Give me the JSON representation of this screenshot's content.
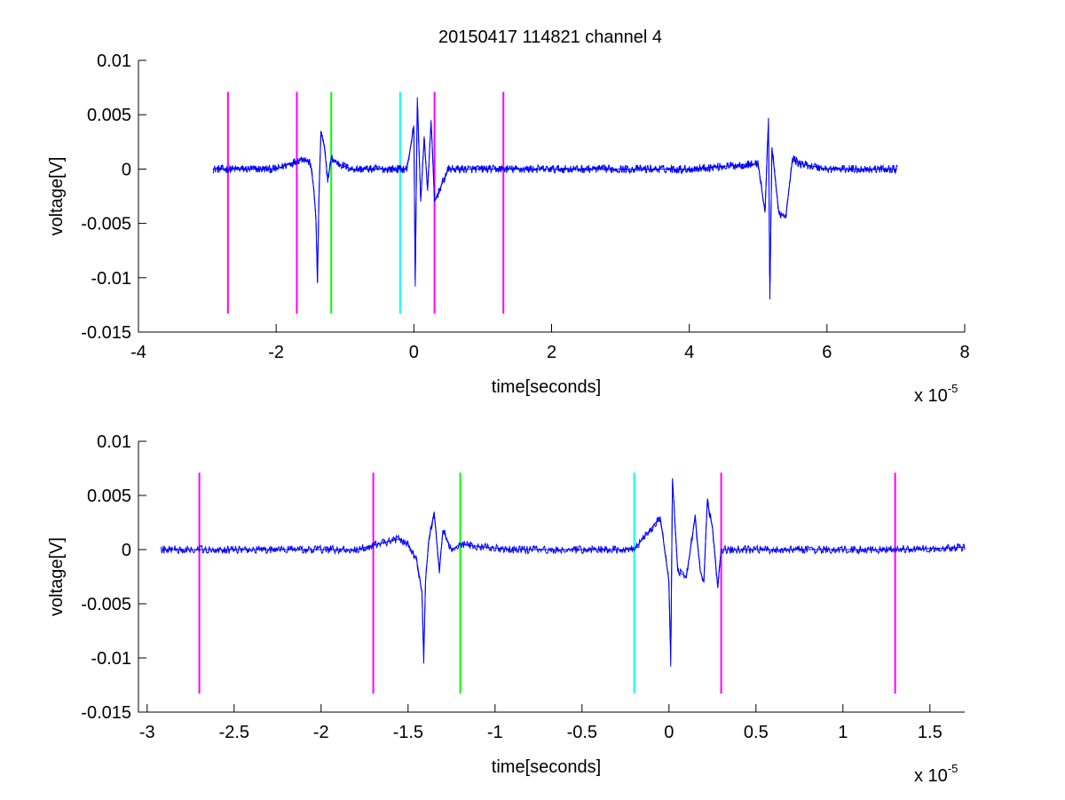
{
  "figure": {
    "title": "20150417 114821 channel 4"
  },
  "colors": {
    "signal": "#0000ff",
    "magenta": "#ff00ff",
    "green": "#00ff00",
    "cyan": "#00ffff",
    "axes": "#000000"
  },
  "chart_data": [
    {
      "type": "line",
      "title": "20150417 114821 channel 4",
      "xlabel": "time[seconds]",
      "ylabel": "voltage[V]",
      "x_multiplier_label": "x 10",
      "x_multiplier_exp": "-5",
      "xlim": [
        -4,
        8
      ],
      "ylim": [
        -0.015,
        0.01
      ],
      "xticks": [
        -4,
        -2,
        0,
        2,
        4,
        6,
        8
      ],
      "xtick_labels": [
        "-4",
        "-2",
        "0",
        "2",
        "4",
        "6",
        "8"
      ],
      "yticks": [
        -0.015,
        -0.01,
        -0.005,
        0,
        0.005,
        0.01
      ],
      "ytick_labels": [
        "-0.015",
        "-0.01",
        "-0.005",
        "0",
        "0.005",
        "0.01"
      ],
      "signal_range": [
        -2.92,
        7.02
      ],
      "series": [
        {
          "color": "blue",
          "x": [
            -2.92,
            -2.5,
            -2.0,
            -1.6,
            -1.5,
            -1.45,
            -1.42,
            -1.4,
            -1.38,
            -1.35,
            -1.3,
            -1.25,
            -1.2,
            -1.1,
            -0.9,
            -0.5,
            -0.1,
            0.0,
            0.02,
            0.05,
            0.1,
            0.15,
            0.2,
            0.25,
            0.3,
            0.5,
            2.0,
            4.0,
            5.0,
            5.1,
            5.15,
            5.17,
            5.2,
            5.3,
            5.4,
            5.5,
            5.6,
            6.0,
            7.02
          ],
          "y": [
            0,
            0,
            0,
            0.001,
            0.0005,
            -0.002,
            -0.005,
            -0.0105,
            -0.003,
            0.0035,
            0.002,
            -0.001,
            0.001,
            0.0005,
            0,
            0,
            0,
            0.004,
            -0.0108,
            0.0066,
            -0.003,
            0.003,
            -0.002,
            0.0045,
            -0.003,
            0,
            0,
            0,
            0.0005,
            -0.004,
            0.0047,
            -0.012,
            0.002,
            -0.004,
            -0.0045,
            0.001,
            0.0005,
            0,
            0
          ]
        }
      ],
      "markers": [
        {
          "x": -2.7,
          "color": "magenta"
        },
        {
          "x": -1.7,
          "color": "magenta"
        },
        {
          "x": -1.2,
          "color": "green"
        },
        {
          "x": -0.2,
          "color": "cyan"
        },
        {
          "x": 0.3,
          "color": "magenta"
        },
        {
          "x": 1.3,
          "color": "magenta"
        }
      ],
      "marker_span": [
        -0.0133,
        0.0071
      ],
      "grid": false
    },
    {
      "type": "line",
      "title": "",
      "xlabel": "time[seconds]",
      "ylabel": "voltage[V]",
      "x_multiplier_label": "x 10",
      "x_multiplier_exp": "-5",
      "xlim": [
        -3.05,
        1.7
      ],
      "ylim": [
        -0.015,
        0.01
      ],
      "xticks": [
        -3,
        -2.5,
        -2,
        -1.5,
        -1,
        -0.5,
        0,
        0.5,
        1,
        1.5
      ],
      "xtick_labels": [
        "-3",
        "-2.5",
        "-2",
        "-1.5",
        "-1",
        "-0.5",
        "0",
        "0.5",
        "1",
        "1.5"
      ],
      "yticks": [
        -0.015,
        -0.01,
        -0.005,
        0,
        0.005,
        0.01
      ],
      "ytick_labels": [
        "-0.015",
        "-0.01",
        "-0.005",
        "0",
        "0.005",
        "0.01"
      ],
      "signal_range": [
        -2.92,
        1.7
      ],
      "series": [
        {
          "color": "blue",
          "x": [
            -2.92,
            -2.7,
            -2.2,
            -1.8,
            -1.6,
            -1.55,
            -1.5,
            -1.45,
            -1.42,
            -1.41,
            -1.4,
            -1.38,
            -1.35,
            -1.32,
            -1.3,
            -1.25,
            -1.2,
            -1.1,
            -0.9,
            -0.5,
            -0.2,
            -0.05,
            0.0,
            0.01,
            0.02,
            0.05,
            0.1,
            0.15,
            0.18,
            0.2,
            0.22,
            0.25,
            0.28,
            0.3,
            0.5,
            1.0,
            1.3,
            1.7
          ],
          "y": [
            0,
            0,
            0,
            0,
            0.0008,
            0.001,
            0.0005,
            -0.001,
            -0.004,
            -0.0105,
            -0.003,
            0.001,
            0.0035,
            -0.002,
            0.0018,
            0,
            0.0005,
            0.0003,
            0,
            0,
            0,
            0.003,
            -0.003,
            -0.0108,
            0.0066,
            -0.002,
            -0.0025,
            0.003,
            -0.002,
            -0.003,
            0.0045,
            0.002,
            -0.0035,
            0,
            0,
            0,
            0,
            0.0002
          ]
        }
      ],
      "markers": [
        {
          "x": -2.7,
          "color": "magenta"
        },
        {
          "x": -1.7,
          "color": "magenta"
        },
        {
          "x": -1.2,
          "color": "green"
        },
        {
          "x": -0.2,
          "color": "cyan"
        },
        {
          "x": 0.3,
          "color": "magenta"
        },
        {
          "x": 1.3,
          "color": "magenta"
        }
      ],
      "marker_span": [
        -0.0133,
        0.0071
      ],
      "grid": false
    }
  ]
}
